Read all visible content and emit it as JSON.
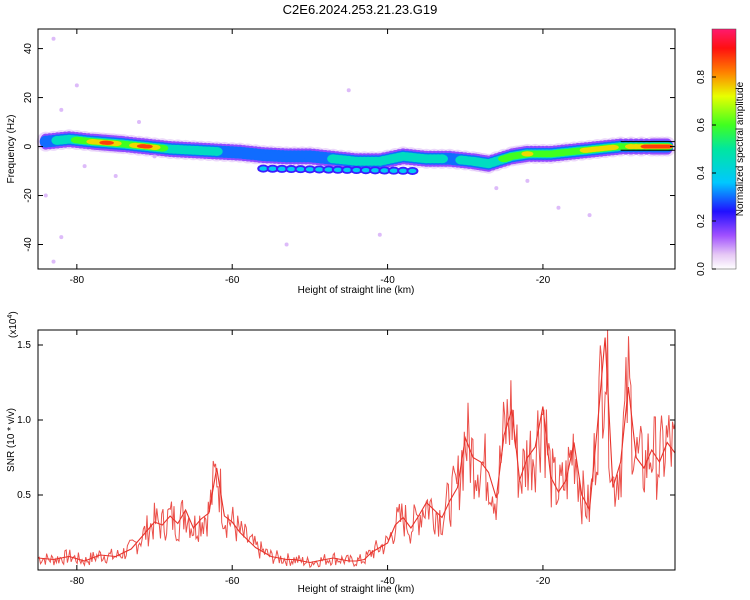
{
  "title": "C2E6.2024.253.21.23.G19",
  "chart_data": [
    {
      "type": "heatmap",
      "xlabel": "Height of straight line (km)",
      "ylabel": "Frequency (Hz)",
      "xlim": [
        -85,
        -3
      ],
      "ylim": [
        -50,
        48
      ],
      "xticks": [
        -80,
        -60,
        -40,
        -20
      ],
      "yticks": [
        -40,
        -20,
        0,
        20,
        40
      ],
      "colorbar": {
        "label": "Normalized spectral amplitude",
        "range": [
          0.0,
          1.0
        ],
        "ticks": [
          "0.0",
          "0.2",
          "0.4",
          "0.6",
          "0.8"
        ]
      },
      "ridge": [
        {
          "x": -84,
          "y": 2,
          "a": 0.35
        },
        {
          "x": -81,
          "y": 3,
          "a": 0.55
        },
        {
          "x": -78,
          "y": 2,
          "a": 0.75
        },
        {
          "x": -76,
          "y": 1.5,
          "a": 0.92
        },
        {
          "x": -74,
          "y": 1,
          "a": 0.6
        },
        {
          "x": -71,
          "y": 0,
          "a": 0.95
        },
        {
          "x": -68,
          "y": -1,
          "a": 0.5
        },
        {
          "x": -65,
          "y": -1.5,
          "a": 0.55
        },
        {
          "x": -62,
          "y": -2,
          "a": 0.45
        },
        {
          "x": -59,
          "y": -2.5,
          "a": 0.4
        },
        {
          "x": -56,
          "y": -3.5,
          "a": 0.35
        },
        {
          "x": -53,
          "y": -4,
          "a": 0.35
        },
        {
          "x": -50,
          "y": -4,
          "a": 0.4
        },
        {
          "x": -47,
          "y": -5,
          "a": 0.45
        },
        {
          "x": -44,
          "y": -6,
          "a": 0.5
        },
        {
          "x": -41,
          "y": -6,
          "a": 0.45
        },
        {
          "x": -38,
          "y": -4,
          "a": 0.5
        },
        {
          "x": -35,
          "y": -5,
          "a": 0.55
        },
        {
          "x": -32,
          "y": -5,
          "a": 0.4
        },
        {
          "x": -29,
          "y": -6,
          "a": 0.5
        },
        {
          "x": -27,
          "y": -7,
          "a": 0.45
        },
        {
          "x": -24,
          "y": -4,
          "a": 0.7
        },
        {
          "x": -22,
          "y": -3,
          "a": 0.75
        },
        {
          "x": -19,
          "y": -3,
          "a": 0.6
        },
        {
          "x": -16,
          "y": -2,
          "a": 0.65
        },
        {
          "x": -13,
          "y": -1,
          "a": 0.85
        },
        {
          "x": -10,
          "y": 0,
          "a": 0.7
        },
        {
          "x": -6,
          "y": 0,
          "a": 0.93
        },
        {
          "x": -4,
          "y": 0,
          "a": 0.95
        }
      ]
    },
    {
      "type": "line",
      "xlabel": "Height of straight line (km)",
      "ylabel": "SNR (10 * v/v)",
      "yscale_label": "(x10",
      "yscale_exp": "4",
      "xlim": [
        -85,
        -3
      ],
      "ylim": [
        0.0,
        1.6
      ],
      "xticks": [
        -80,
        -60,
        -40,
        -20
      ],
      "yticks": [
        0.5,
        1.0,
        1.5
      ],
      "color": "#e8332b",
      "series": [
        {
          "x": [
            -85,
            -83,
            -81,
            -79,
            -77,
            -75,
            -73,
            -71,
            -70,
            -69,
            -68,
            -67,
            -66,
            -65,
            -64,
            -63,
            -62,
            -61,
            -60,
            -59,
            -58,
            -57,
            -56,
            -55,
            -54,
            -53,
            -52,
            -51,
            -50,
            -49,
            -48,
            -47,
            -46,
            -45,
            -44,
            -43,
            -42,
            -41,
            -40,
            -39,
            -38,
            -37,
            -36,
            -35,
            -34,
            -33,
            -32,
            -31,
            -30,
            -29,
            -28,
            -27,
            -26,
            -25,
            -24,
            -23,
            -22,
            -21,
            -20,
            -19,
            -18,
            -17,
            -16,
            -15,
            -14,
            -13,
            -12,
            -11,
            -10,
            -9,
            -8,
            -7,
            -6,
            -5,
            -4,
            -3
          ],
          "values": [
            0.08,
            0.07,
            0.09,
            0.06,
            0.1,
            0.09,
            0.14,
            0.26,
            0.32,
            0.3,
            0.36,
            0.31,
            0.4,
            0.28,
            0.34,
            0.38,
            0.68,
            0.36,
            0.32,
            0.25,
            0.2,
            0.15,
            0.12,
            0.09,
            0.08,
            0.07,
            0.07,
            0.06,
            0.05,
            0.06,
            0.07,
            0.08,
            0.07,
            0.06,
            0.06,
            0.07,
            0.12,
            0.15,
            0.18,
            0.3,
            0.35,
            0.28,
            0.36,
            0.45,
            0.4,
            0.35,
            0.46,
            0.55,
            0.88,
            0.75,
            0.72,
            0.65,
            0.48,
            0.9,
            1.07,
            0.6,
            0.75,
            0.82,
            1.09,
            0.62,
            0.52,
            0.6,
            0.85,
            0.5,
            0.4,
            0.95,
            1.55,
            0.55,
            0.72,
            1.22,
            0.75,
            0.68,
            0.8,
            0.72,
            0.85,
            0.78
          ]
        }
      ]
    }
  ]
}
